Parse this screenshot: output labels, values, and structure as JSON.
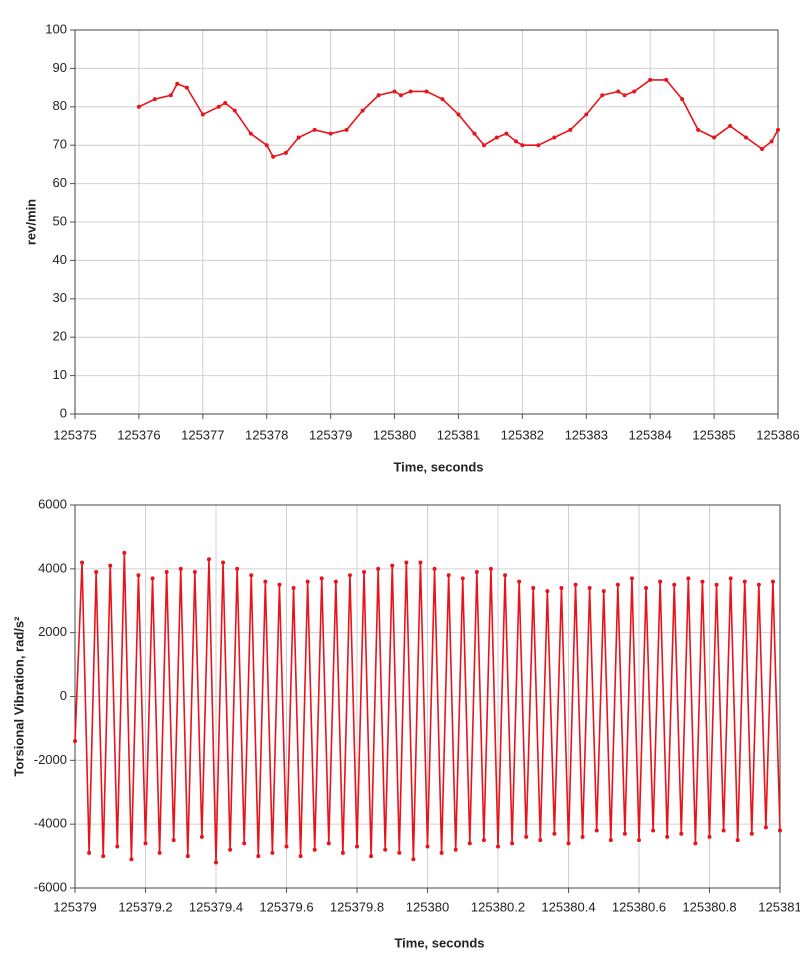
{
  "chart_data": [
    {
      "type": "line",
      "ylabel": "rev/min",
      "xlabel": "Time, seconds",
      "xlim": [
        125375,
        125386
      ],
      "xticks": [
        125375,
        125376,
        125377,
        125378,
        125379,
        125380,
        125381,
        125382,
        125383,
        125384,
        125385,
        125386
      ],
      "ylim": [
        0,
        100
      ],
      "yticks": [
        0,
        10,
        20,
        30,
        40,
        50,
        60,
        70,
        80,
        90,
        100
      ],
      "grid": true,
      "series": [
        {
          "color": "#e8141c",
          "x": [
            125376,
            125376.25,
            125376.5,
            125376.6,
            125376.75,
            125377,
            125377.25,
            125377.35,
            125377.5,
            125377.75,
            125378,
            125378.1,
            125378.3,
            125378.5,
            125378.75,
            125379,
            125379.25,
            125379.5,
            125379.75,
            125380,
            125380.1,
            125380.25,
            125380.5,
            125380.75,
            125381,
            125381.25,
            125381.4,
            125381.6,
            125381.75,
            125381.9,
            125382,
            125382.25,
            125382.5,
            125382.75,
            125383,
            125383.25,
            125383.5,
            125383.6,
            125383.75,
            125384,
            125384.25,
            125384.5,
            125384.75,
            125385,
            125385.25,
            125385.5,
            125385.75,
            125385.9,
            125386
          ],
          "values": [
            80,
            82,
            83,
            86,
            85,
            78,
            80,
            81,
            79,
            73,
            70,
            67,
            68,
            72,
            74,
            73,
            74,
            79,
            83,
            84,
            83,
            84,
            84,
            82,
            78,
            73,
            70,
            72,
            73,
            71,
            70,
            70,
            72,
            74,
            78,
            83,
            84,
            83,
            84,
            87,
            87,
            82,
            74,
            72,
            75,
            72,
            69,
            71,
            74
          ]
        }
      ]
    },
    {
      "type": "line",
      "ylabel": "Torsional Vibration, rad/s²",
      "xlabel": "Time, seconds",
      "xlim": [
        125379,
        125381
      ],
      "xticks": [
        125379,
        125379.2,
        125379.4,
        125379.6,
        125379.8,
        125380,
        125380.2,
        125380.4,
        125380.6,
        125380.8,
        125381
      ],
      "ylim": [
        -6000,
        6000
      ],
      "yticks": [
        -6000,
        -4000,
        -2000,
        0,
        2000,
        4000,
        6000
      ],
      "grid": true,
      "series": [
        {
          "color": "#e8141c",
          "x": [
            125379,
            125379.02,
            125379.04,
            125379.06,
            125379.08,
            125379.1,
            125379.12,
            125379.14,
            125379.16,
            125379.18,
            125379.2,
            125379.22,
            125379.24,
            125379.26,
            125379.28,
            125379.3,
            125379.32,
            125379.34,
            125379.36,
            125379.38,
            125379.4,
            125379.42,
            125379.44,
            125379.46,
            125379.48,
            125379.5,
            125379.52,
            125379.54,
            125379.56,
            125379.58,
            125379.6,
            125379.62,
            125379.64,
            125379.66,
            125379.68,
            125379.7,
            125379.72,
            125379.74,
            125379.76,
            125379.78,
            125379.8,
            125379.82,
            125379.84,
            125379.86,
            125379.88,
            125379.9,
            125379.92,
            125379.94,
            125379.96,
            125379.98,
            125380,
            125380.02,
            125380.04,
            125380.06,
            125380.08,
            125380.1,
            125380.12,
            125380.14,
            125380.16,
            125380.18,
            125380.2,
            125380.22,
            125380.24,
            125380.26,
            125380.28,
            125380.3,
            125380.32,
            125380.34,
            125380.36,
            125380.38,
            125380.4,
            125380.42,
            125380.44,
            125380.46,
            125380.48,
            125380.5,
            125380.52,
            125380.54,
            125380.56,
            125380.58,
            125380.6,
            125380.62,
            125380.64,
            125380.66,
            125380.68,
            125380.7,
            125380.72,
            125380.74,
            125380.76,
            125380.78,
            125380.8,
            125380.82,
            125380.84,
            125380.86,
            125380.88,
            125380.9,
            125380.92,
            125380.94,
            125380.96,
            125380.98,
            125381
          ],
          "values": [
            -1400,
            4200,
            -4900,
            3900,
            -5000,
            4100,
            -4700,
            4500,
            -5100,
            3800,
            -4600,
            3700,
            -4900,
            3900,
            -4500,
            4000,
            -5000,
            3900,
            -4400,
            4300,
            -5200,
            4200,
            -4800,
            4000,
            -4600,
            3800,
            -5000,
            3600,
            -4900,
            3500,
            -4700,
            3400,
            -5000,
            3600,
            -4800,
            3700,
            -4600,
            3600,
            -4900,
            3800,
            -4700,
            3900,
            -5000,
            4000,
            -4800,
            4100,
            -4900,
            4200,
            -5100,
            4200,
            -4700,
            4000,
            -4900,
            3800,
            -4800,
            3700,
            -4600,
            3900,
            -4500,
            4000,
            -4700,
            3800,
            -4600,
            3600,
            -4400,
            3400,
            -4500,
            3300,
            -4300,
            3400,
            -4600,
            3500,
            -4400,
            3400,
            -4200,
            3300,
            -4500,
            3500,
            -4300,
            3700,
            -4500,
            3400,
            -4200,
            3600,
            -4400,
            3500,
            -4300,
            3700,
            -4600,
            3600,
            -4400,
            3500,
            -4200,
            3700,
            -4500,
            3600,
            -4300,
            3500,
            -4100,
            3600,
            -4200
          ]
        }
      ]
    }
  ]
}
